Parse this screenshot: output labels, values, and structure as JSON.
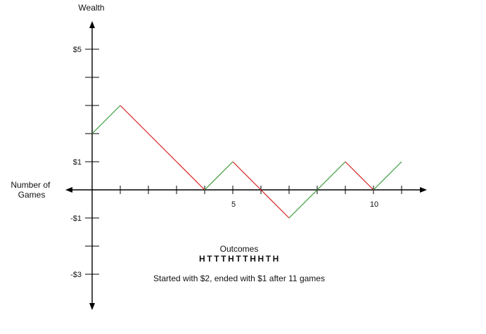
{
  "chart_data": {
    "type": "line",
    "title": "",
    "ylabel": "Wealth",
    "xlabel": "Number of Games",
    "xlabel_lines": [
      "Number of",
      "Games"
    ],
    "x": [
      0,
      1,
      2,
      3,
      4,
      5,
      6,
      7,
      8,
      9,
      10,
      11
    ],
    "y": [
      2,
      3,
      2,
      1,
      0,
      1,
      0,
      -1,
      0,
      1,
      0,
      1
    ],
    "step_colors": [
      "#3a9a3a",
      "#d42020",
      "#d42020",
      "#d42020",
      "#3a9a3a",
      "#d42020",
      "#d42020",
      "#3a9a3a",
      "#3a9a3a",
      "#d42020",
      "#3a9a3a"
    ],
    "xlim": [
      0,
      11
    ],
    "ylim": [
      -4,
      6
    ],
    "x_tick_labels": [
      {
        "x": 5,
        "label": "5"
      },
      {
        "x": 10,
        "label": "10"
      }
    ],
    "y_tick_labels": [
      {
        "y": 5,
        "label": "$5"
      },
      {
        "y": 1,
        "label": "$1"
      },
      {
        "y": -1,
        "label": "-$1"
      },
      {
        "y": -3,
        "label": "-$3"
      }
    ],
    "grid": false,
    "axis_color": "#000000",
    "up_color": "#3a9a3a",
    "down_color": "#d42020",
    "annotations": {
      "outcomes_label": "Outcomes",
      "outcomes_sequence": "HTTTHTTHHTH",
      "summary": "Started with $2, ended with $1 after 11 games"
    }
  }
}
